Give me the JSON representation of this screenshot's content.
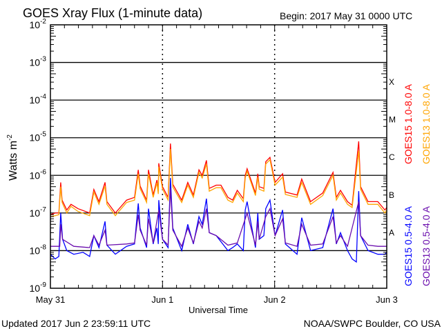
{
  "chart_data": {
    "type": "line",
    "title": "GOES Xray Flux (1-minute data)",
    "begin_label": "Begin:  2017 May 31 0000 UTC",
    "xlabel": "Universal Time",
    "ylabel": "Watts m",
    "ylabel_superscript": "-2",
    "yscale": "log",
    "ylim": [
      1e-09,
      0.01
    ],
    "y_tick_labels": [
      {
        "base": "10",
        "exp": "-9",
        "value": 1e-09
      },
      {
        "base": "10",
        "exp": "-8",
        "value": 1e-08
      },
      {
        "base": "10",
        "exp": "-7",
        "value": 1e-07
      },
      {
        "base": "10",
        "exp": "-6",
        "value": 1e-06
      },
      {
        "base": "10",
        "exp": "-5",
        "value": 1e-05
      },
      {
        "base": "10",
        "exp": "-4",
        "value": 0.0001
      },
      {
        "base": "10",
        "exp": "-3",
        "value": 0.001
      },
      {
        "base": "10",
        "exp": "-2",
        "value": 0.01
      }
    ],
    "x_tick_labels": [
      {
        "label": "May 31",
        "hours": 0
      },
      {
        "label": "Jun 1",
        "hours": 24
      },
      {
        "label": "Jun 2",
        "hours": 48
      },
      {
        "label": "Jun 3",
        "hours": 72
      }
    ],
    "xlim_hours": [
      0,
      72
    ],
    "grid": "horizontal lines at each decade 1e-8..1e-3; dashed vertical lines at day boundaries",
    "flare_classes": [
      {
        "label": "A",
        "value": 3e-08
      },
      {
        "label": "B",
        "value": 3e-07
      },
      {
        "label": "C",
        "value": 3e-06
      },
      {
        "label": "M",
        "value": 3e-05
      },
      {
        "label": "X",
        "value": 0.0003
      }
    ],
    "legend_placement": "right, vertical text",
    "series": [
      {
        "name": "GOES15 1.0-8.0 A",
        "color": "#ff0000",
        "points": [
          [
            0,
            9e-08
          ],
          [
            1,
            1e-07
          ],
          [
            1.8,
            1e-07
          ],
          [
            2.2,
            6.5e-07
          ],
          [
            2.5,
            2.2e-07
          ],
          [
            3.5,
            1.2e-07
          ],
          [
            4.4,
            1.7e-07
          ],
          [
            5.9,
            1.3e-07
          ],
          [
            8.4,
            1e-07
          ],
          [
            9.3,
            4.2e-07
          ],
          [
            10.4,
            2e-07
          ],
          [
            11.7,
            6.5e-07
          ],
          [
            12.1,
            2e-07
          ],
          [
            13.9,
            1e-07
          ],
          [
            16.3,
            2.2e-07
          ],
          [
            18,
            2.6e-07
          ],
          [
            18.8,
            1.4e-06
          ],
          [
            19.2,
            5.2e-07
          ],
          [
            20.6,
            2.2e-07
          ],
          [
            21,
            1.4e-06
          ],
          [
            22,
            3e-07
          ],
          [
            22.8,
            7.5e-07
          ],
          [
            23.1,
            3.8e-07
          ],
          [
            23.2,
            2.1e-06
          ],
          [
            24,
            5e-07
          ],
          [
            25.2,
            2.6e-07
          ],
          [
            25.7,
            7e-06
          ],
          [
            26.2,
            5.8e-07
          ],
          [
            28.1,
            2.2e-07
          ],
          [
            29.4,
            6.5e-07
          ],
          [
            30.6,
            3e-07
          ],
          [
            31.8,
            1.4e-06
          ],
          [
            32.5,
            1e-06
          ],
          [
            33.4,
            2.5e-06
          ],
          [
            34,
            4.5e-07
          ],
          [
            35.5,
            5.5e-07
          ],
          [
            36.5,
            5.5e-07
          ],
          [
            38,
            2.6e-07
          ],
          [
            39,
            2.2e-07
          ],
          [
            40,
            4e-07
          ],
          [
            41.3,
            2.4e-07
          ],
          [
            41.7,
            1e-06
          ],
          [
            42.1,
            1.5e-06
          ],
          [
            43.9,
            3.4e-07
          ],
          [
            44.4,
            1.1e-06
          ],
          [
            44.7,
            5e-07
          ],
          [
            45.7,
            4.5e-07
          ],
          [
            46.1,
            2.3e-06
          ],
          [
            47,
            3e-06
          ],
          [
            48.1,
            6.5e-07
          ],
          [
            49.7,
            1.1e-06
          ],
          [
            50.3,
            3.6e-07
          ],
          [
            52.8,
            3e-07
          ],
          [
            53.8,
            8e-07
          ],
          [
            55.7,
            2e-07
          ],
          [
            58.3,
            3.4e-07
          ],
          [
            60.5,
            1.2e-06
          ],
          [
            61.2,
            2.6e-07
          ],
          [
            62.1,
            4e-07
          ],
          [
            63.6,
            2e-07
          ],
          [
            64.6,
            1.6e-07
          ],
          [
            66,
            8e-06
          ],
          [
            66.4,
            5e-07
          ],
          [
            68,
            2e-07
          ],
          [
            70.1,
            2e-07
          ],
          [
            71.6,
            1.2e-07
          ],
          [
            72,
            1.4e-07
          ]
        ]
      },
      {
        "name": "GOES13 1.0-8.0 A",
        "color": "#ffa500",
        "points": [
          [
            0,
            8e-08
          ],
          [
            1,
            8.5e-08
          ],
          [
            1.8,
            9e-08
          ],
          [
            2.2,
            5e-07
          ],
          [
            2.5,
            1.9e-07
          ],
          [
            3.5,
            1e-07
          ],
          [
            4.4,
            1.5e-07
          ],
          [
            5.9,
            1.1e-07
          ],
          [
            8.4,
            8.5e-08
          ],
          [
            9.3,
            3.6e-07
          ],
          [
            10.4,
            1.7e-07
          ],
          [
            11.7,
            5.2e-07
          ],
          [
            12.1,
            1.7e-07
          ],
          [
            13.9,
            8.5e-08
          ],
          [
            16.3,
            1.9e-07
          ],
          [
            18,
            2.2e-07
          ],
          [
            18.8,
            1.1e-06
          ],
          [
            19.2,
            4.4e-07
          ],
          [
            20.6,
            1.9e-07
          ],
          [
            21,
            1.1e-06
          ],
          [
            22,
            2.6e-07
          ],
          [
            22.8,
            6.4e-07
          ],
          [
            23.1,
            3.2e-07
          ],
          [
            23.2,
            1.7e-06
          ],
          [
            24,
            4.3e-07
          ],
          [
            25.2,
            2.2e-07
          ],
          [
            25.7,
            5e-06
          ],
          [
            26.2,
            4.9e-07
          ],
          [
            28.1,
            1.9e-07
          ],
          [
            29.4,
            5.5e-07
          ],
          [
            30.6,
            2.6e-07
          ],
          [
            31.8,
            1.2e-06
          ],
          [
            32.5,
            8.5e-07
          ],
          [
            33.4,
            2e-06
          ],
          [
            34,
            3.8e-07
          ],
          [
            35.5,
            4.7e-07
          ],
          [
            36.5,
            4.7e-07
          ],
          [
            38,
            2.2e-07
          ],
          [
            39,
            1.9e-07
          ],
          [
            40,
            3.4e-07
          ],
          [
            41.3,
            2e-07
          ],
          [
            41.7,
            8.5e-07
          ],
          [
            42.1,
            1.3e-06
          ],
          [
            43.9,
            2.9e-07
          ],
          [
            44.4,
            9e-07
          ],
          [
            44.7,
            4.3e-07
          ],
          [
            45.7,
            3.8e-07
          ],
          [
            46.1,
            2e-06
          ],
          [
            47,
            2.6e-06
          ],
          [
            48.1,
            5.5e-07
          ],
          [
            49.7,
            9e-07
          ],
          [
            50.3,
            3.1e-07
          ],
          [
            52.8,
            2.6e-07
          ],
          [
            53.8,
            6.5e-07
          ],
          [
            55.7,
            1.7e-07
          ],
          [
            58.3,
            2.9e-07
          ],
          [
            60.5,
            1e-06
          ],
          [
            61.2,
            2.2e-07
          ],
          [
            62.1,
            3.4e-07
          ],
          [
            63.6,
            1.7e-07
          ],
          [
            64.6,
            1.4e-07
          ],
          [
            66,
            4.5e-06
          ],
          [
            66.4,
            4.3e-07
          ],
          [
            68,
            1.7e-07
          ],
          [
            70.1,
            1.7e-07
          ],
          [
            71.6,
            1e-07
          ],
          [
            72,
            1.2e-07
          ]
        ]
      },
      {
        "name": "GOES15 0.5-4.0 A",
        "color": "#0000ff",
        "points": [
          [
            0,
            8e-09
          ],
          [
            1,
            6e-09
          ],
          [
            1.8,
            7e-09
          ],
          [
            2.2,
            1e-07
          ],
          [
            2.6,
            2e-08
          ],
          [
            3.5,
            1e-08
          ],
          [
            5,
            8e-09
          ],
          [
            7,
            9e-09
          ],
          [
            8.4,
            7e-09
          ],
          [
            9.3,
            2.5e-08
          ],
          [
            10.4,
            1.2e-08
          ],
          [
            11.7,
            6e-08
          ],
          [
            12.1,
            1.4e-08
          ],
          [
            13.9,
            8e-09
          ],
          [
            16.3,
            1.3e-08
          ],
          [
            18,
            1.5e-08
          ],
          [
            18.8,
            1.8e-07
          ],
          [
            19.2,
            4e-08
          ],
          [
            20.6,
            1.2e-08
          ],
          [
            21,
            1.3e-07
          ],
          [
            22,
            1.5e-08
          ],
          [
            22.8,
            4e-08
          ],
          [
            23.1,
            1.5e-08
          ],
          [
            23.2,
            2.2e-07
          ],
          [
            24,
            2e-08
          ],
          [
            25.2,
            1.2e-08
          ],
          [
            25.7,
            8.5e-07
          ],
          [
            26.2,
            4e-08
          ],
          [
            28.1,
            1e-08
          ],
          [
            29.4,
            5e-08
          ],
          [
            30.6,
            1.5e-08
          ],
          [
            31.8,
            8e-08
          ],
          [
            32.5,
            5e-08
          ],
          [
            33.4,
            2.4e-07
          ],
          [
            34,
            3e-08
          ],
          [
            35.5,
            2.5e-08
          ],
          [
            38,
            1e-08
          ],
          [
            39,
            1.2e-08
          ],
          [
            40,
            1.5e-08
          ],
          [
            41.3,
            1e-08
          ],
          [
            41.7,
            1.2e-07
          ],
          [
            42.1,
            2e-07
          ],
          [
            43.9,
            1.2e-08
          ],
          [
            44.4,
            1e-07
          ],
          [
            44.7,
            2e-08
          ],
          [
            45.7,
            2.5e-08
          ],
          [
            46.1,
            1.3e-07
          ],
          [
            47,
            2.2e-07
          ],
          [
            48.1,
            2.5e-08
          ],
          [
            49.7,
            1.2e-07
          ],
          [
            50.3,
            1.5e-08
          ],
          [
            52.8,
            8e-09
          ],
          [
            53.8,
            7.5e-08
          ],
          [
            55.7,
            1e-08
          ],
          [
            58.3,
            1.2e-08
          ],
          [
            60.5,
            1.3e-07
          ],
          [
            61.2,
            1.5e-08
          ],
          [
            62.1,
            3e-08
          ],
          [
            63.6,
            1e-08
          ],
          [
            64.6,
            6e-09
          ],
          [
            65.5,
            5e-09
          ],
          [
            66,
            3.8e-07
          ],
          [
            66.4,
            2.5e-08
          ],
          [
            68,
            1e-08
          ],
          [
            70.1,
            8e-09
          ],
          [
            71.6,
            8e-09
          ],
          [
            72,
            9e-09
          ]
        ]
      },
      {
        "name": "GOES13 0.5-4.0 A",
        "color": "#6a0dad",
        "points": [
          [
            0,
            1.3e-08
          ],
          [
            2,
            1.3e-08
          ],
          [
            2.2,
            5e-08
          ],
          [
            2.6,
            2e-08
          ],
          [
            5,
            1.3e-08
          ],
          [
            8.4,
            1.2e-08
          ],
          [
            9.3,
            2.5e-08
          ],
          [
            10.4,
            1.4e-08
          ],
          [
            11.7,
            3.5e-08
          ],
          [
            12.1,
            1.4e-08
          ],
          [
            16.3,
            1.5e-08
          ],
          [
            18,
            1.6e-08
          ],
          [
            18.8,
            9e-08
          ],
          [
            19.2,
            3.5e-08
          ],
          [
            20.6,
            1.4e-08
          ],
          [
            21,
            7e-08
          ],
          [
            22,
            1.6e-08
          ],
          [
            23.2,
            1.2e-07
          ],
          [
            24,
            2e-08
          ],
          [
            25.2,
            1.4e-08
          ],
          [
            25.7,
            4.5e-07
          ],
          [
            26.2,
            3.5e-08
          ],
          [
            28.1,
            1.3e-08
          ],
          [
            29.4,
            4e-08
          ],
          [
            30.6,
            1.6e-08
          ],
          [
            31.8,
            6e-08
          ],
          [
            32.5,
            4e-08
          ],
          [
            33.4,
            1.3e-07
          ],
          [
            34,
            3e-08
          ],
          [
            35.5,
            2.5e-08
          ],
          [
            38,
            1.4e-08
          ],
          [
            40,
            1.6e-08
          ],
          [
            41.7,
            7e-08
          ],
          [
            42.1,
            1e-07
          ],
          [
            43.9,
            1.4e-08
          ],
          [
            44.4,
            6e-08
          ],
          [
            44.7,
            2e-08
          ],
          [
            46.1,
            8e-08
          ],
          [
            47,
            1.3e-07
          ],
          [
            48.1,
            2.5e-08
          ],
          [
            49.7,
            7e-08
          ],
          [
            50.3,
            1.6e-08
          ],
          [
            52.8,
            1.3e-08
          ],
          [
            53.8,
            5e-08
          ],
          [
            55.7,
            1.4e-08
          ],
          [
            58.3,
            1.5e-08
          ],
          [
            60.5,
            8e-08
          ],
          [
            61.2,
            1.6e-08
          ],
          [
            62.1,
            2.5e-08
          ],
          [
            63.6,
            1.3e-08
          ],
          [
            66,
            2e-07
          ],
          [
            66.4,
            2.5e-08
          ],
          [
            68,
            1.4e-08
          ],
          [
            70.1,
            1.3e-08
          ],
          [
            72,
            1.3e-08
          ]
        ]
      }
    ]
  },
  "footer": {
    "updated": "Updated 2017 Jun  2 23:59:11 UTC",
    "credit": "NOAA/SWPC Boulder, CO USA"
  }
}
